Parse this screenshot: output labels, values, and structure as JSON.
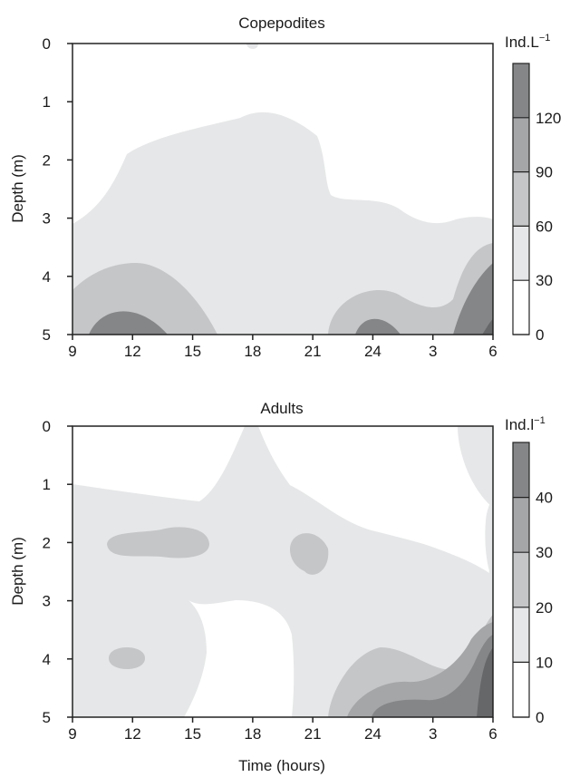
{
  "chart_data": [
    {
      "type": "heatmap",
      "title": "Copepodites",
      "xlabel": "",
      "ylabel": "Depth (m)",
      "x_ticks": [
        "9",
        "12",
        "15",
        "18",
        "21",
        "24",
        "3",
        "6"
      ],
      "y_ticks": [
        "0",
        "1",
        "2",
        "3",
        "4",
        "5"
      ],
      "ylim": [
        0,
        5
      ],
      "y_inverted": true,
      "colorbar": {
        "unit_base": "Ind.L",
        "unit_sup": "−1",
        "ticks": [
          "0",
          "30",
          "60",
          "90",
          "120"
        ],
        "levels": [
          0,
          30,
          60,
          90,
          120,
          150
        ]
      },
      "level_colors": [
        "#ffffff",
        "#e6e7e8",
        "#c5c6c8",
        "#a5a6a8",
        "#858688",
        "#666769"
      ]
    },
    {
      "type": "heatmap",
      "title": "Adults",
      "xlabel": "Time (hours)",
      "ylabel": "Depth (m)",
      "x_ticks": [
        "9",
        "12",
        "15",
        "18",
        "21",
        "24",
        "3",
        "6"
      ],
      "y_ticks": [
        "0",
        "1",
        "2",
        "3",
        "4",
        "5"
      ],
      "ylim": [
        0,
        5
      ],
      "y_inverted": true,
      "colorbar": {
        "unit_base": "Ind.l",
        "unit_sup": "−1",
        "ticks": [
          "0",
          "10",
          "20",
          "30",
          "40"
        ],
        "levels": [
          0,
          10,
          20,
          30,
          40,
          50
        ]
      },
      "level_colors": [
        "#ffffff",
        "#e6e7e8",
        "#c5c6c8",
        "#a5a6a8",
        "#858688",
        "#666769"
      ]
    }
  ]
}
